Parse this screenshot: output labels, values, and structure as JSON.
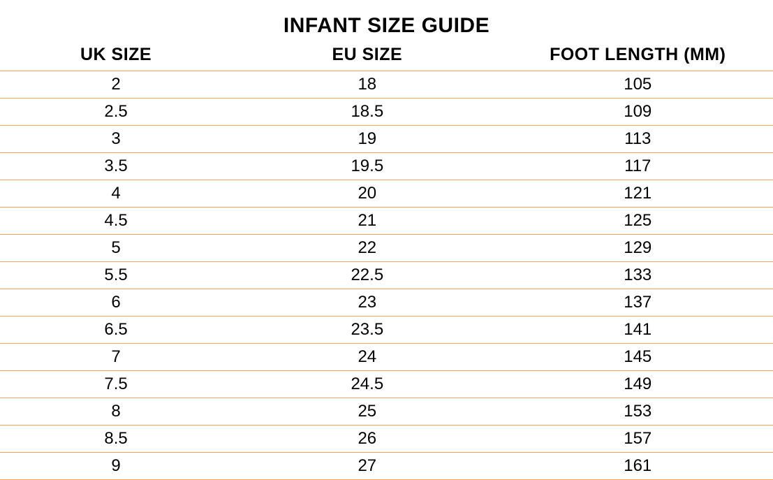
{
  "table": {
    "title": "INFANT SIZE GUIDE",
    "columns": [
      "UK SIZE",
      "EU SIZE",
      "FOOT LENGTH (MM)"
    ],
    "rows": [
      [
        "2",
        "18",
        "105"
      ],
      [
        "2.5",
        "18.5",
        "109"
      ],
      [
        "3",
        "19",
        "113"
      ],
      [
        "3.5",
        "19.5",
        "117"
      ],
      [
        "4",
        "20",
        "121"
      ],
      [
        "4.5",
        "21",
        "125"
      ],
      [
        "5",
        "22",
        "129"
      ],
      [
        "5.5",
        "22.5",
        "133"
      ],
      [
        "6",
        "23",
        "137"
      ],
      [
        "6.5",
        "23.5",
        "141"
      ],
      [
        "7",
        "24",
        "145"
      ],
      [
        "7.5",
        "24.5",
        "149"
      ],
      [
        "8",
        "25",
        "153"
      ],
      [
        "8.5",
        "26",
        "157"
      ],
      [
        "9",
        "27",
        "161"
      ]
    ],
    "style": {
      "title_fontsize": 30,
      "header_fontsize": 25,
      "cell_fontsize": 24,
      "font_family": "Century Gothic",
      "text_color": "#000000",
      "background_color": "#ffffff",
      "row_border_color": "#f4a460",
      "row_border_width": 1,
      "column_widths_pct": [
        30,
        35,
        35
      ],
      "text_align": "center"
    }
  }
}
